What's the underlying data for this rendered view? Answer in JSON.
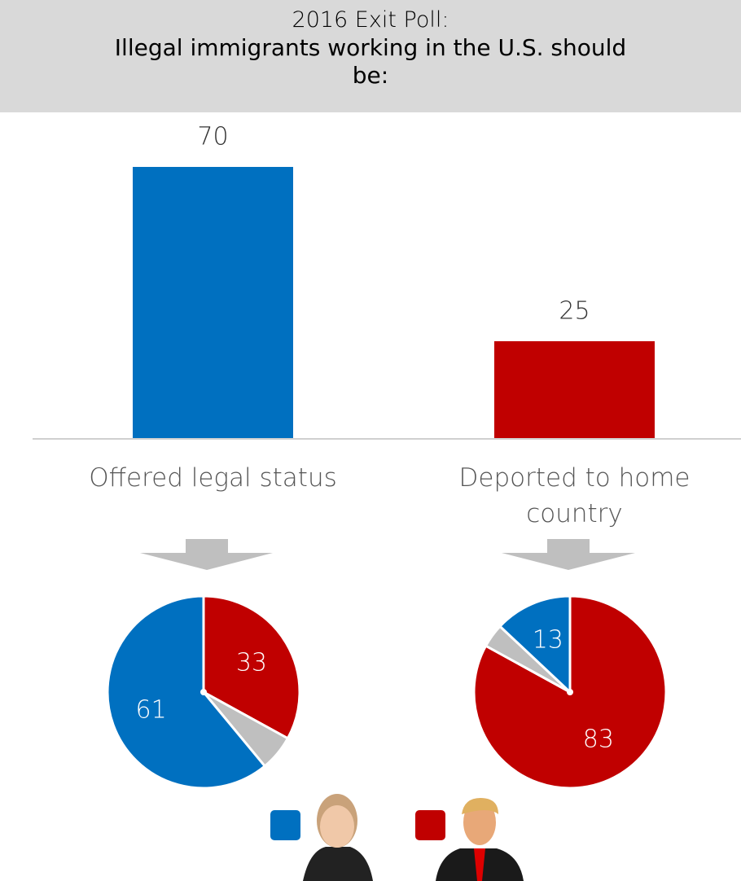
{
  "chart_data": [
    {
      "type": "bar",
      "title": "2016 Exit Poll:",
      "subtitle": "Illegal immigrants working in the U.S. should be:",
      "categories": [
        "Offered legal status",
        "Deported to home country"
      ],
      "values": [
        70,
        25
      ],
      "colors": [
        "#0070c0",
        "#c00000"
      ]
    },
    {
      "type": "pie",
      "values": [
        33,
        6,
        61
      ],
      "colors": [
        "#c00000",
        "#bfbfbf",
        "#0070c0"
      ]
    },
    {
      "type": "pie",
      "values": [
        83,
        4,
        13
      ],
      "colors": [
        "#c00000",
        "#bfbfbf",
        "#0070c0"
      ]
    }
  ]
}
